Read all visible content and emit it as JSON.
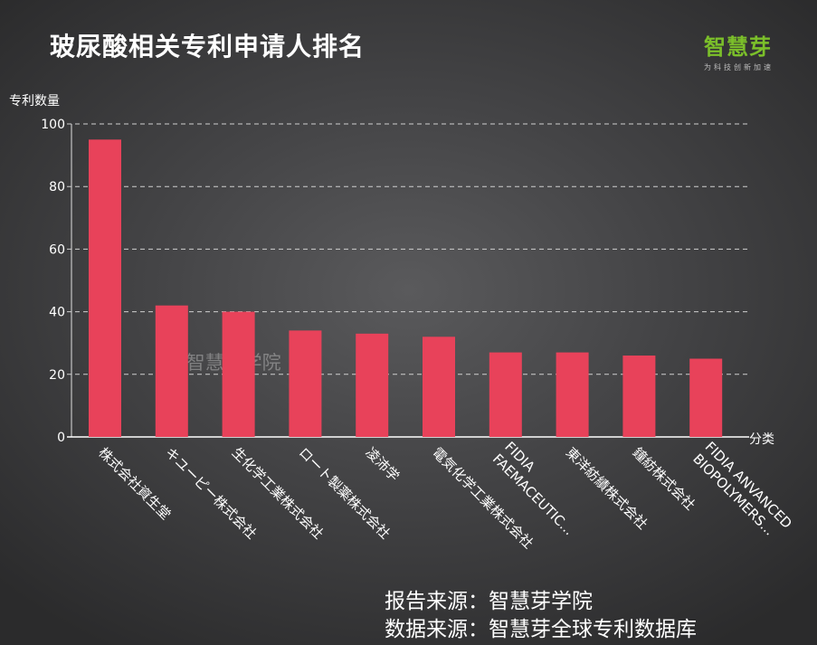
{
  "page": {
    "title": "玻尿酸相关专利申请人排名",
    "logo": {
      "name": "智慧芽",
      "tagline": "为科技创新加速"
    },
    "watermark": "@ 智慧芽学院",
    "footer": [
      "报告来源：智慧芽学院",
      "数据来源：智慧芽全球专利数据库"
    ]
  },
  "colors": {
    "bar": "#e8425a",
    "grid": "#d0d0d0",
    "logo": "#7bbf2a"
  },
  "chart_data": {
    "type": "bar",
    "title": "玻尿酸相关专利申请人排名",
    "xlabel": "分类",
    "ylabel": "专利数量",
    "ylim": [
      0,
      100
    ],
    "yticks": [
      0,
      20,
      40,
      60,
      80,
      100
    ],
    "grid": true,
    "categories": [
      "株式会社資生堂",
      "キユーピー株式会社",
      "生化学工業株式会社",
      "ロート製薬株式会社",
      "凌沛学",
      "電気化学工業株式会社",
      "FIDIA\nFAEMACEUTIC...",
      "東洋紡績株式会社",
      "鐘紡株式会社",
      "FIDIA ANVANCED\nBIOPOLYMERS..."
    ],
    "values": [
      95,
      42,
      40,
      34,
      33,
      32,
      27,
      27,
      26,
      25
    ]
  }
}
